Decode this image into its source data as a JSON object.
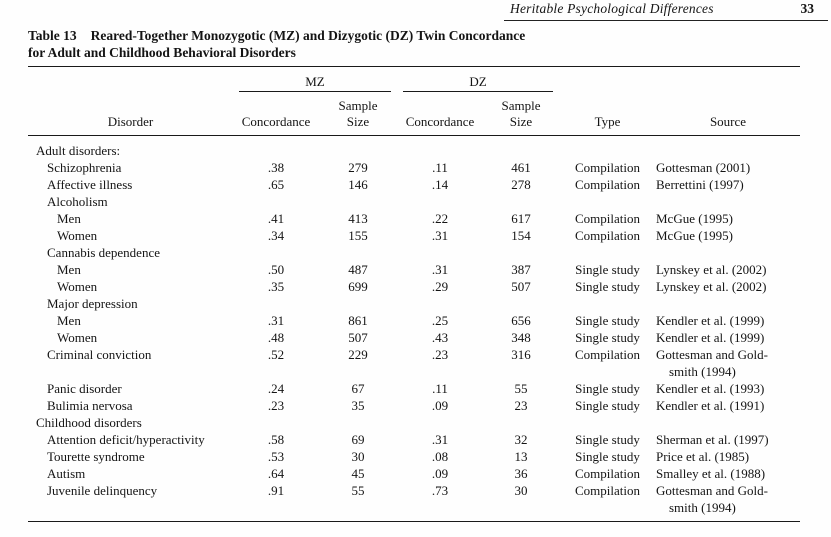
{
  "running_head": {
    "title": "Heritable Psychological Differences",
    "page_number": "33"
  },
  "table": {
    "label": "Table 13",
    "title_line1": "Reared-Together Monozygotic (MZ) and Dizygotic (DZ) Twin Concordance",
    "title_line2": "for Adult and Childhood Behavioral Disorders",
    "group_headers": {
      "mz": "MZ",
      "dz": "DZ"
    },
    "col_headers": {
      "disorder": "Disorder",
      "concordance": "Concordance",
      "sample": "Sample",
      "size": "Size",
      "type": "Type",
      "source": "Source"
    },
    "rows": [
      {
        "label": "Adult disorders:",
        "indent": 0
      },
      {
        "label": "Schizophrenia",
        "indent": 1,
        "mz_concordance": ".38",
        "mz_sample": "279",
        "dz_concordance": ".11",
        "dz_sample": "461",
        "study_type": "Compilation",
        "source": "Gottesman (2001)"
      },
      {
        "label": "Affective illness",
        "indent": 1,
        "mz_concordance": ".65",
        "mz_sample": "146",
        "dz_concordance": ".14",
        "dz_sample": "278",
        "study_type": "Compilation",
        "source": "Berrettini (1997)"
      },
      {
        "label": "Alcoholism",
        "indent": 1
      },
      {
        "label": "Men",
        "indent": 2,
        "mz_concordance": ".41",
        "mz_sample": "413",
        "dz_concordance": ".22",
        "dz_sample": "617",
        "study_type": "Compilation",
        "source": "McGue (1995)"
      },
      {
        "label": "Women",
        "indent": 2,
        "mz_concordance": ".34",
        "mz_sample": "155",
        "dz_concordance": ".31",
        "dz_sample": "154",
        "study_type": "Compilation",
        "source": "McGue (1995)"
      },
      {
        "label": "Cannabis dependence",
        "indent": 1
      },
      {
        "label": "Men",
        "indent": 2,
        "mz_concordance": ".50",
        "mz_sample": "487",
        "dz_concordance": ".31",
        "dz_sample": "387",
        "study_type": "Single study",
        "source": "Lynskey et al. (2002)"
      },
      {
        "label": "Women",
        "indent": 2,
        "mz_concordance": ".35",
        "mz_sample": "699",
        "dz_concordance": ".29",
        "dz_sample": "507",
        "study_type": "Single study",
        "source": "Lynskey et al. (2002)"
      },
      {
        "label": "Major depression",
        "indent": 1
      },
      {
        "label": "Men",
        "indent": 2,
        "mz_concordance": ".31",
        "mz_sample": "861",
        "dz_concordance": ".25",
        "dz_sample": "656",
        "study_type": "Single study",
        "source": "Kendler et al. (1999)"
      },
      {
        "label": "Women",
        "indent": 2,
        "mz_concordance": ".48",
        "mz_sample": "507",
        "dz_concordance": ".43",
        "dz_sample": "348",
        "study_type": "Single study",
        "source": "Kendler et al. (1999)"
      },
      {
        "label": "Criminal conviction",
        "indent": 1,
        "mz_concordance": ".52",
        "mz_sample": "229",
        "dz_concordance": ".23",
        "dz_sample": "316",
        "study_type": "Compilation",
        "source": "Gottesman and Gold-",
        "source_line2": "smith (1994)"
      },
      {
        "label": "Panic disorder",
        "indent": 1,
        "mz_concordance": ".24",
        "mz_sample": "67",
        "dz_concordance": ".11",
        "dz_sample": "55",
        "study_type": "Single study",
        "source": "Kendler et al. (1993)"
      },
      {
        "label": "Bulimia nervosa",
        "indent": 1,
        "mz_concordance": ".23",
        "mz_sample": "35",
        "dz_concordance": ".09",
        "dz_sample": "23",
        "study_type": "Single study",
        "source": "Kendler et al. (1991)"
      },
      {
        "label": "Childhood disorders",
        "indent": 0
      },
      {
        "label": "Attention deficit/hyperactivity",
        "indent": 1,
        "mz_concordance": ".58",
        "mz_sample": "69",
        "dz_concordance": ".31",
        "dz_sample": "32",
        "study_type": "Single study",
        "source": "Sherman et al. (1997)"
      },
      {
        "label": "Tourette syndrome",
        "indent": 1,
        "mz_concordance": ".53",
        "mz_sample": "30",
        "dz_concordance": ".08",
        "dz_sample": "13",
        "study_type": "Single study",
        "source": "Price et al. (1985)"
      },
      {
        "label": "Autism",
        "indent": 1,
        "mz_concordance": ".64",
        "mz_sample": "45",
        "dz_concordance": ".09",
        "dz_sample": "36",
        "study_type": "Compilation",
        "source": "Smalley et al. (1988)"
      },
      {
        "label": "Juvenile delinquency",
        "indent": 1,
        "mz_concordance": ".91",
        "mz_sample": "55",
        "dz_concordance": ".73",
        "dz_sample": "30",
        "study_type": "Compilation",
        "source": "Gottesman and Gold-",
        "source_line2": "smith (1994)"
      }
    ]
  }
}
